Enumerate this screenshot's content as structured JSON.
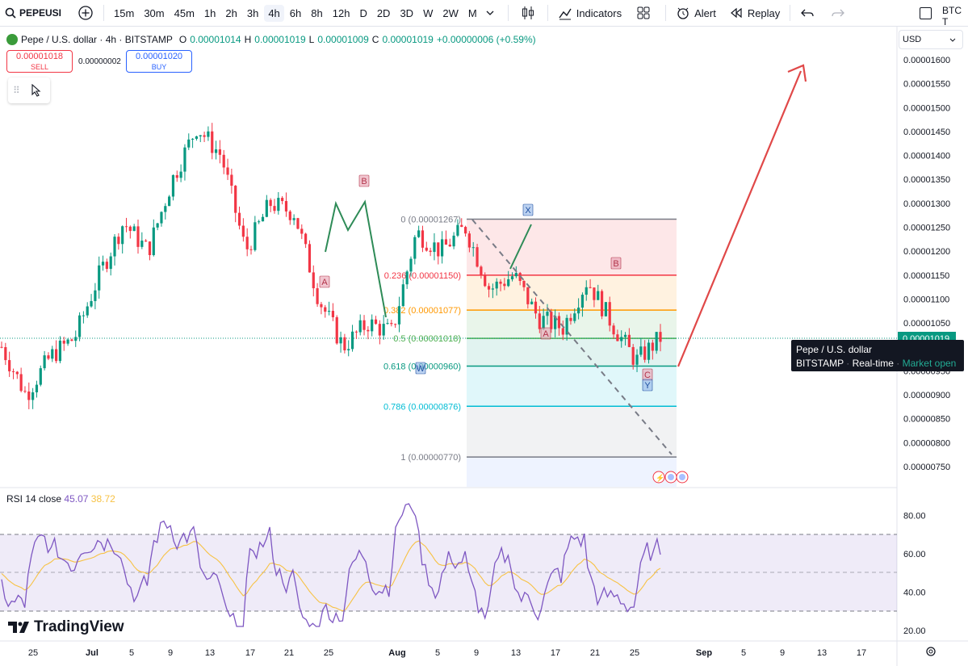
{
  "toolbar": {
    "symbol": "PEPEUSI",
    "intervals": [
      "15m",
      "30m",
      "45m",
      "1h",
      "2h",
      "3h",
      "4h",
      "6h",
      "8h",
      "12h",
      "D",
      "2D",
      "3D",
      "W",
      "2W",
      "M"
    ],
    "active_interval": "4h",
    "indicators_label": "Indicators",
    "alert_label": "Alert",
    "replay_label": "Replay",
    "right_label": "BTC T"
  },
  "legend": {
    "title": "Pepe / U.S. dollar · 4h · BITSTAMP",
    "o_label": "O",
    "o_value": "0.00001014",
    "h_label": "H",
    "h_value": "0.00001019",
    "l_label": "L",
    "l_value": "0.00001009",
    "c_label": "C",
    "c_value": "0.00001019",
    "change": "+0.00000006 (+0.59%)"
  },
  "trade": {
    "sell_price": "0.00001018",
    "sell_label": "SELL",
    "spread": "0.00000002",
    "buy_price": "0.00001020",
    "buy_label": "BUY"
  },
  "currency": "USD",
  "price_axis": [
    "0.00001600",
    "0.00001550",
    "0.00001500",
    "0.00001450",
    "0.00001400",
    "0.00001350",
    "0.00001300",
    "0.00001250",
    "0.00001200",
    "0.00001150",
    "0.00001100",
    "0.00001050",
    "0.00001000",
    "0.00000950",
    "0.00000900",
    "0.00000850",
    "0.00000800",
    "0.00000750"
  ],
  "current_price_tag": "0.00001019",
  "fib_levels": [
    {
      "label": "0 (0.00001267)",
      "color": "#787b86"
    },
    {
      "label": "0.236 (0.00001150)",
      "color": "#f23645"
    },
    {
      "label": "0.382 (0.00001077)",
      "color": "#ff9800"
    },
    {
      "label": "0.5 (0.00001018)",
      "color": "#4caf50"
    },
    {
      "label": "0.618 (0.00000960)",
      "color": "#089981"
    },
    {
      "label": "0.786 (0.00000876)",
      "color": "#00bcd4"
    },
    {
      "label": "1 (0.00000770)",
      "color": "#787b86"
    }
  ],
  "wave_labels": [
    "A",
    "B",
    "W",
    "X",
    "A",
    "B",
    "C",
    "Y"
  ],
  "tooltip": {
    "title": "Pepe / U.S. dollar",
    "exchange": "BITSTAMP",
    "feed": "Real-time",
    "status": "Market open"
  },
  "rsi": {
    "label": "RSI 14 close",
    "value": "45.07",
    "ma_value": "38.72",
    "axis": [
      "80.00",
      "60.00",
      "40.00",
      "20.00"
    ]
  },
  "time_axis": [
    "25",
    "Jul",
    "5",
    "9",
    "13",
    "17",
    "21",
    "25",
    "Aug",
    "5",
    "9",
    "13",
    "17",
    "21",
    "25",
    "Sep",
    "5",
    "9",
    "13",
    "17"
  ],
  "logo": "TradingView",
  "chart_data": {
    "type": "candlestick",
    "title": "Pepe / U.S. dollar · 4h · BITSTAMP",
    "price_series": [
      {
        "date": "Jun 22",
        "price": 1e-05
      },
      {
        "date": "Jun 25",
        "price": 9e-06
      },
      {
        "date": "Jul 1",
        "price": 9.8e-06
      },
      {
        "date": "Jul 5",
        "price": 1.02e-05
      },
      {
        "date": "Jul 9",
        "price": 1.15e-05
      },
      {
        "date": "Jul 11",
        "price": 1.26e-05
      },
      {
        "date": "Jul 13",
        "price": 1.2e-05
      },
      {
        "date": "Jul 17",
        "price": 1.35e-05
      },
      {
        "date": "Jul 20",
        "price": 1.46e-05
      },
      {
        "date": "Jul 22",
        "price": 1.4e-05
      },
      {
        "date": "Jul 24",
        "price": 1.2e-05
      },
      {
        "date": "Jul 25",
        "price": 1.3e-05
      },
      {
        "date": "Jul 27",
        "price": 1.28e-05
      },
      {
        "date": "Jul 30",
        "price": 1.1e-05
      },
      {
        "date": "Aug 2",
        "price": 1e-05
      },
      {
        "date": "Aug 5",
        "price": 1.05e-05
      },
      {
        "date": "Aug 7",
        "price": 1.03e-05
      },
      {
        "date": "Aug 9",
        "price": 1.24e-05
      },
      {
        "date": "Aug 11",
        "price": 1.2e-05
      },
      {
        "date": "Aug 13",
        "price": 1.25e-05
      },
      {
        "date": "Aug 15",
        "price": 1.12e-05
      },
      {
        "date": "Aug 17",
        "price": 1.15e-05
      },
      {
        "date": "Aug 19",
        "price": 1.06e-05
      },
      {
        "date": "Aug 22",
        "price": 1.04e-05
      },
      {
        "date": "Aug 23",
        "price": 1.14e-05
      },
      {
        "date": "Aug 25",
        "price": 1.05e-05
      },
      {
        "date": "Aug 26",
        "price": 9.7e-06
      },
      {
        "date": "Aug 28",
        "price": 1.019e-05
      }
    ],
    "projection": {
      "from": "Aug 29",
      "to": "Sep 11",
      "target": 1.6e-05
    },
    "rsi_range": [
      20,
      80
    ]
  }
}
